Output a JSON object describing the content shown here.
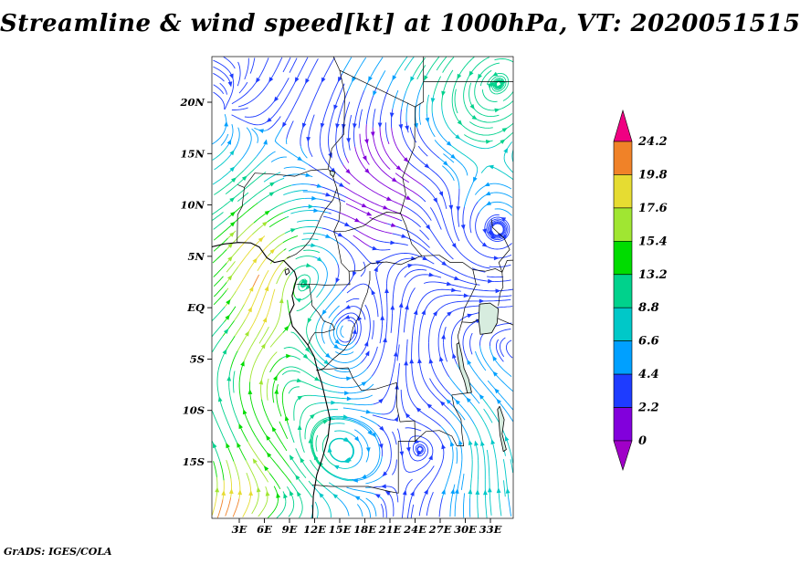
{
  "title": "Streamline & wind speed[kt] at 1000hPa, VT: 2020051515",
  "footer": "GrADS: IGES/COLA",
  "axes": {
    "y_ticks": [
      "20N",
      "15N",
      "10N",
      "5N",
      "EQ",
      "5S",
      "10S",
      "15S"
    ],
    "x_ticks": [
      "3E",
      "6E",
      "9E",
      "12E",
      "15E",
      "18E",
      "21E",
      "24E",
      "27E",
      "30E",
      "33E"
    ]
  },
  "colorbar": {
    "labels": [
      "24.2",
      "19.8",
      "17.6",
      "15.4",
      "13.2",
      "8.8",
      "6.6",
      "4.4",
      "2.2",
      "0"
    ],
    "colors_top_to_bottom": [
      "#f00082",
      "#f08228",
      "#e6dc32",
      "#a0e632",
      "#00dc00",
      "#00d28c",
      "#00c8c8",
      "#00a0ff",
      "#1e3cff",
      "#8200dc",
      "#a000c8"
    ]
  },
  "chart_data": {
    "type": "streamline",
    "title": "Streamline & wind speed[kt] at 1000hPa, VT: 2020051515",
    "variable": "wind speed",
    "units": "kt",
    "pressure_level": "1000hPa",
    "valid_time": "2020051515",
    "region": {
      "lon_ticks_deg_east": [
        3,
        6,
        9,
        12,
        15,
        18,
        21,
        24,
        27,
        30,
        33
      ],
      "lat_ticks_deg": [
        20,
        15,
        10,
        5,
        0,
        -5,
        -10,
        -15
      ]
    },
    "x_tick_labels": [
      "3E",
      "6E",
      "9E",
      "12E",
      "15E",
      "18E",
      "21E",
      "24E",
      "27E",
      "30E",
      "33E"
    ],
    "y_tick_labels": [
      "20N",
      "15N",
      "10N",
      "5N",
      "EQ",
      "5S",
      "10S",
      "15S"
    ],
    "color_levels": [
      0,
      2.2,
      4.4,
      6.6,
      8.8,
      13.2,
      15.4,
      17.6,
      19.8,
      24.2
    ],
    "colorbar_labels_top_to_bottom": [
      "24.2",
      "19.8",
      "17.6",
      "15.4",
      "13.2",
      "8.8",
      "6.6",
      "4.4",
      "2.2",
      "0"
    ],
    "palette_top_to_bottom": [
      "#f00082",
      "#f08228",
      "#e6dc32",
      "#a0e632",
      "#00dc00",
      "#00d28c",
      "#00c8c8",
      "#00a0ff",
      "#1e3cff",
      "#8200dc",
      "#a000c8"
    ],
    "legend_position": "right",
    "grid": false,
    "notes": "Wind streamlines over central Africa colored by speed: strongest flow (yellow-orange, ~15-24 kt) along the Atlantic coast and southwest corner, weak winds (purple-blue, 0-6 kt) over the interior Congo basin."
  }
}
